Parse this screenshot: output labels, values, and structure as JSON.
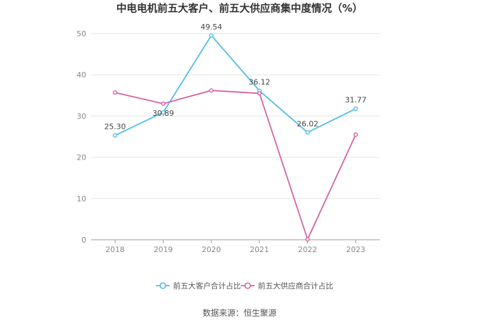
{
  "chart_data": {
    "type": "line",
    "title": "中电电机前五大客户、前五大供应商集中度情况（%）",
    "categories": [
      "2018",
      "2019",
      "2020",
      "2021",
      "2022",
      "2023"
    ],
    "ylim": [
      0,
      50
    ],
    "yticks": [
      "0",
      "10",
      "20",
      "30",
      "40",
      "50"
    ],
    "grid": true,
    "legend_position": "bottom",
    "series": [
      {
        "name": "前五大客户合计占比",
        "color": "#4dbde8",
        "values": [
          25.3,
          30.89,
          49.54,
          36.12,
          26.02,
          31.77
        ],
        "labels": [
          "25.30",
          "30.89",
          "49.54",
          "36.12",
          "26.02",
          "31.77"
        ]
      },
      {
        "name": "前五大供应商合计占比",
        "color": "#d660a4",
        "values": [
          35.7,
          33.0,
          36.2,
          35.5,
          0.1,
          25.5
        ],
        "labels": []
      }
    ]
  },
  "source": "数据来源：恒生聚源"
}
